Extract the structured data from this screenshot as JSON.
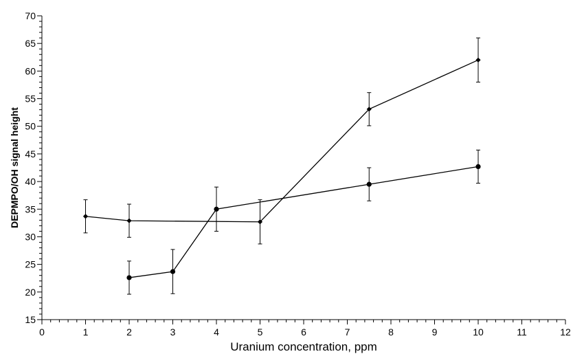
{
  "chart_data": {
    "type": "line",
    "xlabel": "Uranium concentration, ppm",
    "ylabel": "DEPMPO/OH signal height",
    "xlim": [
      0,
      12
    ],
    "ylim": [
      15,
      70
    ],
    "x_ticks": [
      0,
      1,
      2,
      3,
      4,
      5,
      6,
      7,
      8,
      9,
      10,
      11,
      12
    ],
    "y_ticks": [
      15,
      20,
      25,
      30,
      35,
      40,
      45,
      50,
      55,
      60,
      65,
      70
    ],
    "grid": false,
    "series": [
      {
        "marker": "diamond",
        "color": "#000000",
        "x": [
          1,
          2,
          5,
          7.5,
          10
        ],
        "y": [
          33.7,
          32.9,
          32.7,
          53.1,
          62.0
        ],
        "err": [
          3.0,
          3.0,
          4.0,
          3.0,
          4.0
        ]
      },
      {
        "marker": "circle",
        "color": "#000000",
        "x": [
          2,
          3,
          4,
          7.5,
          10
        ],
        "y": [
          22.6,
          23.7,
          35.0,
          39.5,
          42.7
        ],
        "err": [
          3.0,
          4.0,
          4.0,
          3.0,
          3.0
        ]
      }
    ]
  }
}
